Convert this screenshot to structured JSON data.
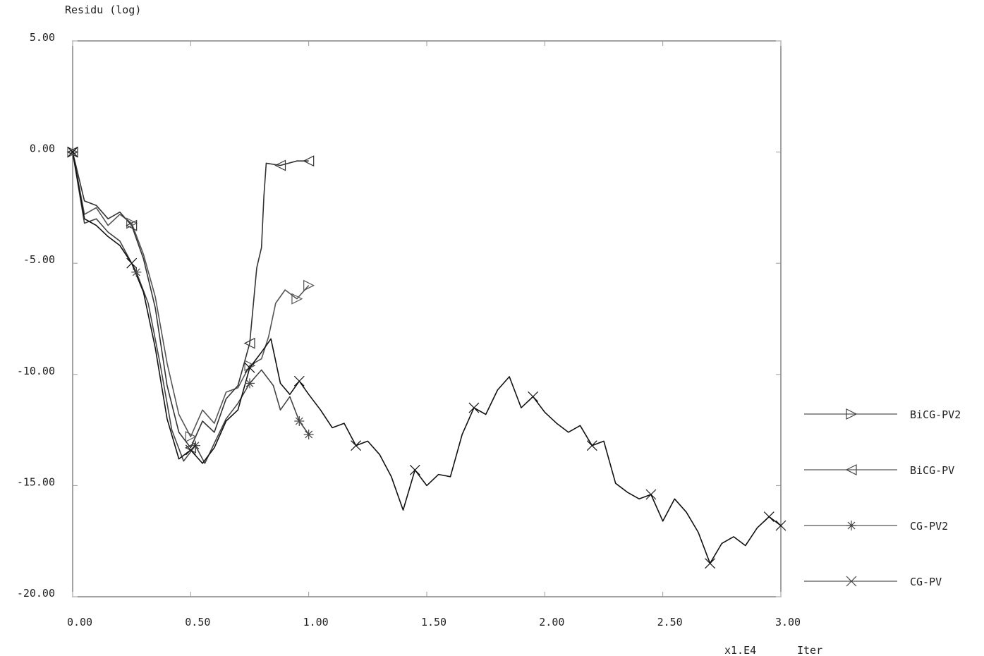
{
  "chart_data": {
    "type": "line",
    "ylabel": "Residu (log)",
    "xlabel": "Iter",
    "x_multiplier": "x1.E4",
    "xlim": [
      0,
      3
    ],
    "ylim": [
      -20,
      5
    ],
    "x_ticks": [
      "0.00",
      "0.50",
      "1.00",
      "1.50",
      "2.00",
      "2.50",
      "3.00"
    ],
    "y_ticks": [
      "5.00",
      "0.00",
      "-5.00",
      "-10.00",
      "-15.00",
      "-20.00"
    ],
    "grid": false,
    "legend_position": "right",
    "series": [
      {
        "name": "BiCG-PV2",
        "marker": "triangle-right",
        "color": "#555555",
        "points": [
          [
            0,
            0
          ],
          [
            0.05,
            -2.8
          ],
          [
            0.1,
            -2.5
          ],
          [
            0.15,
            -3.3
          ],
          [
            0.2,
            -2.8
          ],
          [
            0.25,
            -3.2
          ],
          [
            0.3,
            -4.6
          ],
          [
            0.35,
            -6.5
          ],
          [
            0.4,
            -9.5
          ],
          [
            0.45,
            -11.8
          ],
          [
            0.5,
            -12.8
          ],
          [
            0.55,
            -11.6
          ],
          [
            0.6,
            -12.2
          ],
          [
            0.65,
            -10.8
          ],
          [
            0.7,
            -10.6
          ],
          [
            0.75,
            -9.6
          ],
          [
            0.8,
            -9.3
          ],
          [
            0.83,
            -8.3
          ],
          [
            0.86,
            -6.8
          ],
          [
            0.9,
            -6.2
          ],
          [
            0.95,
            -6.6
          ],
          [
            1.0,
            -6.0
          ]
        ]
      },
      {
        "name": "BiCG-PV",
        "marker": "triangle-left",
        "color": "#333333",
        "points": [
          [
            0,
            0
          ],
          [
            0.05,
            -2.2
          ],
          [
            0.1,
            -2.4
          ],
          [
            0.15,
            -3.0
          ],
          [
            0.2,
            -2.7
          ],
          [
            0.25,
            -3.3
          ],
          [
            0.3,
            -4.8
          ],
          [
            0.35,
            -7.0
          ],
          [
            0.4,
            -10.5
          ],
          [
            0.45,
            -12.6
          ],
          [
            0.5,
            -13.3
          ],
          [
            0.55,
            -12.1
          ],
          [
            0.6,
            -12.6
          ],
          [
            0.65,
            -11.1
          ],
          [
            0.7,
            -10.5
          ],
          [
            0.75,
            -8.6
          ],
          [
            0.78,
            -5.2
          ],
          [
            0.8,
            -4.3
          ],
          [
            0.81,
            -2.0
          ],
          [
            0.82,
            -0.5
          ],
          [
            0.88,
            -0.6
          ],
          [
            0.95,
            -0.4
          ],
          [
            1.0,
            -0.4
          ]
        ]
      },
      {
        "name": "CG-PV2",
        "marker": "star",
        "color": "#444444",
        "points": [
          [
            0,
            0
          ],
          [
            0.05,
            -3.2
          ],
          [
            0.1,
            -3.0
          ],
          [
            0.15,
            -3.6
          ],
          [
            0.2,
            -4.0
          ],
          [
            0.27,
            -5.4
          ],
          [
            0.32,
            -6.8
          ],
          [
            0.37,
            -9.5
          ],
          [
            0.42,
            -12.5
          ],
          [
            0.47,
            -13.9
          ],
          [
            0.52,
            -13.2
          ],
          [
            0.56,
            -14.0
          ],
          [
            0.6,
            -13.1
          ],
          [
            0.65,
            -12.0
          ],
          [
            0.7,
            -11.3
          ],
          [
            0.75,
            -10.4
          ],
          [
            0.8,
            -9.8
          ],
          [
            0.85,
            -10.5
          ],
          [
            0.88,
            -11.6
          ],
          [
            0.92,
            -11.0
          ],
          [
            0.96,
            -12.1
          ],
          [
            1.0,
            -12.7
          ]
        ]
      },
      {
        "name": "CG-PV",
        "marker": "x",
        "color": "#111111",
        "points": [
          [
            0,
            0
          ],
          [
            0.05,
            -3.0
          ],
          [
            0.1,
            -3.3
          ],
          [
            0.15,
            -3.8
          ],
          [
            0.2,
            -4.2
          ],
          [
            0.25,
            -5.0
          ],
          [
            0.3,
            -6.3
          ],
          [
            0.35,
            -8.8
          ],
          [
            0.4,
            -12.0
          ],
          [
            0.45,
            -13.8
          ],
          [
            0.5,
            -13.4
          ],
          [
            0.55,
            -14.0
          ],
          [
            0.6,
            -13.3
          ],
          [
            0.65,
            -12.1
          ],
          [
            0.7,
            -11.6
          ],
          [
            0.75,
            -9.7
          ],
          [
            0.8,
            -9.0
          ],
          [
            0.84,
            -8.4
          ],
          [
            0.88,
            -10.4
          ],
          [
            0.92,
            -10.9
          ],
          [
            0.96,
            -10.3
          ],
          [
            1.0,
            -10.9
          ],
          [
            1.05,
            -11.6
          ],
          [
            1.1,
            -12.4
          ],
          [
            1.15,
            -12.2
          ],
          [
            1.2,
            -13.2
          ],
          [
            1.25,
            -13.0
          ],
          [
            1.3,
            -13.6
          ],
          [
            1.35,
            -14.6
          ],
          [
            1.4,
            -16.1
          ],
          [
            1.45,
            -14.3
          ],
          [
            1.5,
            -15.0
          ],
          [
            1.55,
            -14.5
          ],
          [
            1.6,
            -14.6
          ],
          [
            1.65,
            -12.7
          ],
          [
            1.7,
            -11.5
          ],
          [
            1.75,
            -11.8
          ],
          [
            1.8,
            -10.7
          ],
          [
            1.85,
            -10.1
          ],
          [
            1.9,
            -11.5
          ],
          [
            1.95,
            -11.0
          ],
          [
            2.0,
            -11.7
          ],
          [
            2.05,
            -12.2
          ],
          [
            2.1,
            -12.6
          ],
          [
            2.15,
            -12.3
          ],
          [
            2.2,
            -13.2
          ],
          [
            2.25,
            -13.0
          ],
          [
            2.3,
            -14.9
          ],
          [
            2.35,
            -15.3
          ],
          [
            2.4,
            -15.6
          ],
          [
            2.45,
            -15.4
          ],
          [
            2.5,
            -16.6
          ],
          [
            2.55,
            -15.6
          ],
          [
            2.6,
            -16.2
          ],
          [
            2.65,
            -17.1
          ],
          [
            2.7,
            -18.5
          ],
          [
            2.75,
            -17.6
          ],
          [
            2.8,
            -17.3
          ],
          [
            2.85,
            -17.7
          ],
          [
            2.9,
            -16.9
          ],
          [
            2.95,
            -16.4
          ],
          [
            3.0,
            -16.8
          ]
        ]
      }
    ]
  }
}
